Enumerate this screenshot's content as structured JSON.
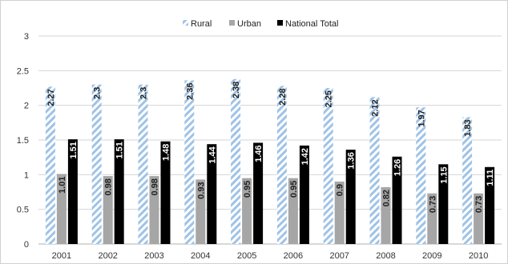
{
  "chart_data": {
    "type": "bar",
    "title": "",
    "xlabel": "",
    "ylabel": "",
    "categories": [
      "2001",
      "2002",
      "2003",
      "2004",
      "2005",
      "2006",
      "2007",
      "2008",
      "2009",
      "2010"
    ],
    "series": [
      {
        "name": "Rural",
        "color": "#a9c8e8",
        "pattern": "diagonal-hatch",
        "values": [
          2.27,
          2.3,
          2.3,
          2.36,
          2.38,
          2.28,
          2.25,
          2.12,
          1.97,
          1.83
        ],
        "labels": [
          "2.27",
          "2.3",
          "2.3",
          "2.36",
          "2.38",
          "2.28",
          "2.25",
          "2.12",
          "1.97",
          "1.83"
        ]
      },
      {
        "name": "Urban",
        "color": "#a6a6a6",
        "pattern": "solid",
        "values": [
          1.01,
          0.98,
          0.98,
          0.93,
          0.95,
          0.95,
          0.9,
          0.82,
          0.73,
          0.73
        ],
        "labels": [
          "1.01",
          "0.98",
          "0.98",
          "0.93",
          "0.95",
          "0.95",
          "0.9",
          "0.82",
          "0.73",
          "0.73"
        ]
      },
      {
        "name": "National Total",
        "color": "#000000",
        "pattern": "solid",
        "values": [
          1.51,
          1.51,
          1.48,
          1.44,
          1.46,
          1.42,
          1.36,
          1.26,
          1.15,
          1.11
        ],
        "labels": [
          "1.51",
          "1.51",
          "1.48",
          "1.44",
          "1.46",
          "1.42",
          "1.36",
          "1.26",
          "1.15",
          "1.11"
        ]
      }
    ],
    "ylim": [
      0,
      3
    ],
    "yticks": [
      "0",
      "0.5",
      "1",
      "1.5",
      "2",
      "2.5",
      "3"
    ],
    "grid": true,
    "legend_position": "top"
  }
}
